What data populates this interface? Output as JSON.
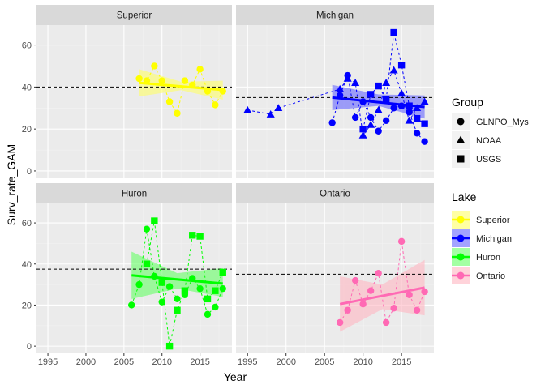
{
  "chart_data": {
    "type": "scatter",
    "xlabel": "Year",
    "ylabel": "Surv_rate_GAM",
    "xlim": [
      1993.5,
      2019.2
    ],
    "ylim": [
      -3.5,
      69.5
    ],
    "xticks": [
      1995,
      2000,
      2005,
      2010,
      2015
    ],
    "yticks": [
      0,
      20,
      40,
      60
    ],
    "grid": true,
    "legend_placement": "right",
    "colors": {
      "panel_bg": "#ebebeb",
      "strip_bg": "#d9d9d9",
      "grid_major": "#ffffff",
      "grid_minor": "#f2f2f2",
      "text": "#4d4d4d",
      "title_text": "#000000"
    },
    "facets": [
      {
        "name": "Superior",
        "color": "#ffff00",
        "ribbon": "#ffff66",
        "hline": 40,
        "fit": {
          "x0": 2007,
          "y0": 42,
          "x1": 2018,
          "y1": 38.6,
          "lower0": 35.5,
          "upper0": 48.5,
          "lowerMid": 38.5,
          "upperMid": 42.5,
          "lower1": 34,
          "upper1": 43
        },
        "points": [
          {
            "x": 2007,
            "y": 44,
            "g": "GLNPO_Mys"
          },
          {
            "x": 2008,
            "y": 43,
            "g": "GLNPO_Mys"
          },
          {
            "x": 2009,
            "y": 50,
            "g": "GLNPO_Mys"
          },
          {
            "x": 2010,
            "y": 43,
            "g": "GLNPO_Mys"
          },
          {
            "x": 2011,
            "y": 33,
            "g": "GLNPO_Mys"
          },
          {
            "x": 2012,
            "y": 27.5,
            "g": "GLNPO_Mys"
          },
          {
            "x": 2013,
            "y": 43,
            "g": "GLNPO_Mys"
          },
          {
            "x": 2014,
            "y": 41,
            "g": "GLNPO_Mys"
          },
          {
            "x": 2015,
            "y": 48.5,
            "g": "GLNPO_Mys"
          },
          {
            "x": 2016,
            "y": 38,
            "g": "GLNPO_Mys"
          },
          {
            "x": 2017,
            "y": 31.5,
            "g": "GLNPO_Mys"
          },
          {
            "x": 2018,
            "y": 38,
            "g": "GLNPO_Mys"
          }
        ]
      },
      {
        "name": "Michigan",
        "color": "#0000ff",
        "ribbon": "#6666ff",
        "hline": 35,
        "fit": {
          "x0": 2006,
          "y0": 35,
          "x1": 2018,
          "y1": 30.5,
          "lower0": 29,
          "upper0": 41,
          "lowerMid": 31,
          "upperMid": 36.5,
          "lower1": 25,
          "upper1": 36
        },
        "points": [
          {
            "x": 1995,
            "y": 29,
            "g": "NOAA"
          },
          {
            "x": 1998,
            "y": 27,
            "g": "NOAA"
          },
          {
            "x": 1999,
            "y": 30,
            "g": "NOAA"
          },
          {
            "x": 2006,
            "y": 23,
            "g": "GLNPO_Mys"
          },
          {
            "x": 2007,
            "y": 36,
            "g": "GLNPO_Mys"
          },
          {
            "x": 2007,
            "y": 39,
            "g": "NOAA"
          },
          {
            "x": 2008,
            "y": 45.5,
            "g": "GLNPO_Mys"
          },
          {
            "x": 2008,
            "y": 44,
            "g": "NOAA"
          },
          {
            "x": 2009,
            "y": 25.5,
            "g": "GLNPO_Mys"
          },
          {
            "x": 2009,
            "y": 42,
            "g": "NOAA"
          },
          {
            "x": 2010,
            "y": 33,
            "g": "GLNPO_Mys"
          },
          {
            "x": 2010,
            "y": 17,
            "g": "NOAA"
          },
          {
            "x": 2010,
            "y": 20,
            "g": "USGS"
          },
          {
            "x": 2011,
            "y": 25.5,
            "g": "GLNPO_Mys"
          },
          {
            "x": 2011,
            "y": 22,
            "g": "NOAA"
          },
          {
            "x": 2011,
            "y": 36.5,
            "g": "USGS"
          },
          {
            "x": 2012,
            "y": 19,
            "g": "GLNPO_Mys"
          },
          {
            "x": 2012,
            "y": 29,
            "g": "NOAA"
          },
          {
            "x": 2012,
            "y": 40.5,
            "g": "USGS"
          },
          {
            "x": 2013,
            "y": 24,
            "g": "GLNPO_Mys"
          },
          {
            "x": 2013,
            "y": 42,
            "g": "NOAA"
          },
          {
            "x": 2013,
            "y": 34,
            "g": "USGS"
          },
          {
            "x": 2014,
            "y": 30,
            "g": "GLNPO_Mys"
          },
          {
            "x": 2014,
            "y": 48,
            "g": "NOAA"
          },
          {
            "x": 2014,
            "y": 66,
            "g": "USGS"
          },
          {
            "x": 2015,
            "y": 31,
            "g": "GLNPO_Mys"
          },
          {
            "x": 2015,
            "y": 37,
            "g": "NOAA"
          },
          {
            "x": 2015,
            "y": 50.5,
            "g": "USGS"
          },
          {
            "x": 2016,
            "y": 28,
            "g": "GLNPO_Mys"
          },
          {
            "x": 2016,
            "y": 24,
            "g": "NOAA"
          },
          {
            "x": 2016,
            "y": 31,
            "g": "USGS"
          },
          {
            "x": 2017,
            "y": 18,
            "g": "GLNPO_Mys"
          },
          {
            "x": 2017,
            "y": 30,
            "g": "NOAA"
          },
          {
            "x": 2017,
            "y": 25,
            "g": "USGS"
          },
          {
            "x": 2018,
            "y": 14,
            "g": "GLNPO_Mys"
          },
          {
            "x": 2018,
            "y": 33,
            "g": "NOAA"
          },
          {
            "x": 2018,
            "y": 22.5,
            "g": "USGS"
          }
        ]
      },
      {
        "name": "Huron",
        "color": "#00ff00",
        "ribbon": "#66ff66",
        "hline": 37.5,
        "fit": {
          "x0": 2006,
          "y0": 34.5,
          "x1": 2018,
          "y1": 30.5,
          "lower0": 23,
          "upper0": 46,
          "lowerMid": 28,
          "upperMid": 35.5,
          "lower1": 24,
          "upper1": 38
        },
        "points": [
          {
            "x": 2006,
            "y": 20,
            "g": "GLNPO_Mys"
          },
          {
            "x": 2007,
            "y": 30,
            "g": "GLNPO_Mys"
          },
          {
            "x": 2008,
            "y": 57,
            "g": "GLNPO_Mys"
          },
          {
            "x": 2008,
            "y": 40,
            "g": "USGS"
          },
          {
            "x": 2009,
            "y": 34,
            "g": "GLNPO_Mys"
          },
          {
            "x": 2009,
            "y": 61,
            "g": "USGS"
          },
          {
            "x": 2010,
            "y": 21.5,
            "g": "GLNPO_Mys"
          },
          {
            "x": 2010,
            "y": 31,
            "g": "USGS"
          },
          {
            "x": 2011,
            "y": 29,
            "g": "GLNPO_Mys"
          },
          {
            "x": 2011,
            "y": 0,
            "g": "USGS"
          },
          {
            "x": 2012,
            "y": 23,
            "g": "GLNPO_Mys"
          },
          {
            "x": 2012,
            "y": 17.5,
            "g": "USGS"
          },
          {
            "x": 2013,
            "y": 25,
            "g": "GLNPO_Mys"
          },
          {
            "x": 2013,
            "y": 27,
            "g": "USGS"
          },
          {
            "x": 2014,
            "y": 33,
            "g": "GLNPO_Mys"
          },
          {
            "x": 2014,
            "y": 54,
            "g": "USGS"
          },
          {
            "x": 2015,
            "y": 28,
            "g": "GLNPO_Mys"
          },
          {
            "x": 2015,
            "y": 53.5,
            "g": "USGS"
          },
          {
            "x": 2016,
            "y": 15.5,
            "g": "GLNPO_Mys"
          },
          {
            "x": 2016,
            "y": 23,
            "g": "USGS"
          },
          {
            "x": 2017,
            "y": 19,
            "g": "GLNPO_Mys"
          },
          {
            "x": 2017,
            "y": 27,
            "g": "USGS"
          },
          {
            "x": 2018,
            "y": 28,
            "g": "GLNPO_Mys"
          },
          {
            "x": 2018,
            "y": 36,
            "g": "USGS"
          }
        ]
      },
      {
        "name": "Ontario",
        "color": "#ff69b4",
        "ribbon": "#ffb6c1",
        "hline": 35,
        "fit": {
          "x0": 2007,
          "y0": 20.5,
          "x1": 2018,
          "y1": 28.5,
          "lower0": 7,
          "upper0": 34,
          "lowerMid": 18,
          "upperMid": 30,
          "lower1": 15,
          "upper1": 42
        },
        "points": [
          {
            "x": 2007,
            "y": 11.5,
            "g": "GLNPO_Mys"
          },
          {
            "x": 2008,
            "y": 17.5,
            "g": "GLNPO_Mys"
          },
          {
            "x": 2009,
            "y": 32,
            "g": "GLNPO_Mys"
          },
          {
            "x": 2010,
            "y": 20.5,
            "g": "GLNPO_Mys"
          },
          {
            "x": 2011,
            "y": 27,
            "g": "GLNPO_Mys"
          },
          {
            "x": 2012,
            "y": 35.5,
            "g": "GLNPO_Mys"
          },
          {
            "x": 2013,
            "y": 11.5,
            "g": "GLNPO_Mys"
          },
          {
            "x": 2014,
            "y": 18.5,
            "g": "GLNPO_Mys"
          },
          {
            "x": 2015,
            "y": 51,
            "g": "GLNPO_Mys"
          },
          {
            "x": 2016,
            "y": 25,
            "g": "GLNPO_Mys"
          },
          {
            "x": 2017,
            "y": 17.5,
            "g": "GLNPO_Mys"
          },
          {
            "x": 2018,
            "y": 26.5,
            "g": "GLNPO_Mys"
          }
        ]
      }
    ],
    "legend_group": {
      "title": "Group",
      "entries": [
        {
          "label": "GLNPO_Mys",
          "shape": "circle"
        },
        {
          "label": "NOAA",
          "shape": "triangle"
        },
        {
          "label": "USGS",
          "shape": "square"
        }
      ]
    },
    "legend_lake": {
      "title": "Lake",
      "entries": [
        {
          "label": "Superior",
          "color": "#ffff00",
          "ribbon": "#ffff66"
        },
        {
          "label": "Michigan",
          "color": "#0000ff",
          "ribbon": "#6666ff"
        },
        {
          "label": "Huron",
          "color": "#00ff00",
          "ribbon": "#66ff66"
        },
        {
          "label": "Ontario",
          "color": "#ff69b4",
          "ribbon": "#ffb6c1"
        }
      ]
    }
  }
}
